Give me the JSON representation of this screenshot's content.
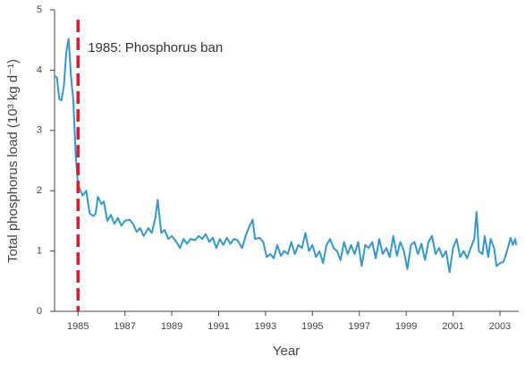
{
  "chart_data": {
    "type": "line",
    "xlabel": "Year",
    "ylabel": "Total phosphorus load (10³ kg d⁻¹)",
    "color": "#3399cc",
    "annotations": [
      {
        "text": "1985: Phosphorus ban",
        "x": 1985,
        "color": "#cc2233"
      }
    ],
    "xlim": [
      1984,
      2003.8
    ],
    "ylim": [
      0,
      5
    ],
    "xticks": [
      1985,
      1987,
      1989,
      1991,
      1993,
      1995,
      1997,
      1999,
      2001,
      2003
    ],
    "yticks": [
      0,
      1,
      2,
      3,
      4,
      5
    ],
    "x": [
      1984.0,
      1984.1,
      1984.2,
      1984.3,
      1984.4,
      1984.5,
      1984.6,
      1984.7,
      1984.8,
      1984.9,
      1985.0,
      1985.2,
      1985.35,
      1985.5,
      1985.65,
      1985.75,
      1985.85,
      1986.0,
      1986.1,
      1986.25,
      1986.4,
      1986.55,
      1986.7,
      1986.85,
      1987.0,
      1987.2,
      1987.35,
      1987.5,
      1987.65,
      1987.8,
      1988.0,
      1988.15,
      1988.3,
      1988.4,
      1988.55,
      1988.7,
      1988.85,
      1989.0,
      1989.2,
      1989.35,
      1989.5,
      1989.65,
      1989.8,
      1990.0,
      1990.15,
      1990.3,
      1990.45,
      1990.6,
      1990.75,
      1990.9,
      1991.05,
      1991.2,
      1991.35,
      1991.5,
      1991.65,
      1991.8,
      1992.0,
      1992.15,
      1992.3,
      1992.45,
      1992.55,
      1992.75,
      1992.9,
      1993.05,
      1993.2,
      1993.35,
      1993.5,
      1993.65,
      1993.8,
      1993.95,
      1994.1,
      1994.25,
      1994.4,
      1994.55,
      1994.7,
      1994.85,
      1995.0,
      1995.15,
      1995.3,
      1995.45,
      1995.6,
      1995.75,
      1995.9,
      1996.05,
      1996.2,
      1996.35,
      1996.5,
      1996.65,
      1996.8,
      1996.95,
      1997.1,
      1997.25,
      1997.4,
      1997.55,
      1997.7,
      1997.85,
      1998.0,
      1998.15,
      1998.3,
      1998.45,
      1998.6,
      1998.75,
      1998.9,
      1999.05,
      1999.2,
      1999.35,
      1999.5,
      1999.65,
      1999.8,
      1999.95,
      2000.1,
      2000.25,
      2000.4,
      2000.55,
      2000.7,
      2000.85,
      2001.0,
      2001.15,
      2001.3,
      2001.45,
      2001.6,
      2001.75,
      2001.9,
      2002.0,
      2002.1,
      2002.25,
      2002.35,
      2002.5,
      2002.6,
      2002.75,
      2002.85,
      2003.0,
      2003.15,
      2003.3,
      2003.45,
      2003.55,
      2003.65,
      2003.7
    ],
    "values": [
      3.9,
      3.88,
      3.52,
      3.5,
      3.75,
      4.3,
      4.52,
      3.9,
      3.5,
      2.6,
      2.1,
      1.92,
      2.0,
      1.62,
      1.58,
      1.62,
      1.9,
      1.78,
      1.82,
      1.5,
      1.6,
      1.45,
      1.55,
      1.42,
      1.5,
      1.52,
      1.45,
      1.32,
      1.38,
      1.25,
      1.38,
      1.3,
      1.55,
      1.85,
      1.3,
      1.35,
      1.2,
      1.25,
      1.15,
      1.05,
      1.2,
      1.12,
      1.2,
      1.18,
      1.25,
      1.2,
      1.28,
      1.15,
      1.22,
      1.05,
      1.2,
      1.1,
      1.22,
      1.12,
      1.2,
      1.18,
      1.05,
      1.25,
      1.4,
      1.52,
      1.2,
      1.22,
      1.15,
      0.9,
      0.95,
      0.88,
      1.1,
      0.92,
      1.0,
      0.95,
      1.15,
      0.95,
      1.1,
      1.05,
      1.3,
      1.0,
      1.1,
      0.9,
      1.0,
      0.8,
      1.1,
      1.2,
      1.05,
      1.0,
      0.85,
      1.15,
      0.95,
      1.1,
      0.95,
      1.15,
      0.75,
      1.1,
      1.05,
      1.15,
      0.88,
      1.2,
      0.95,
      1.05,
      0.9,
      1.25,
      0.92,
      1.15,
      1.0,
      0.7,
      1.1,
      1.15,
      0.95,
      1.12,
      0.85,
      1.15,
      1.25,
      0.95,
      1.05,
      0.9,
      1.0,
      0.65,
      1.05,
      1.2,
      0.9,
      1.0,
      0.88,
      1.05,
      1.2,
      1.65,
      1.0,
      0.95,
      1.25,
      0.9,
      1.2,
      1.05,
      0.75,
      0.8,
      0.82,
      1.0,
      1.22,
      1.1,
      1.2,
      1.1
    ]
  }
}
